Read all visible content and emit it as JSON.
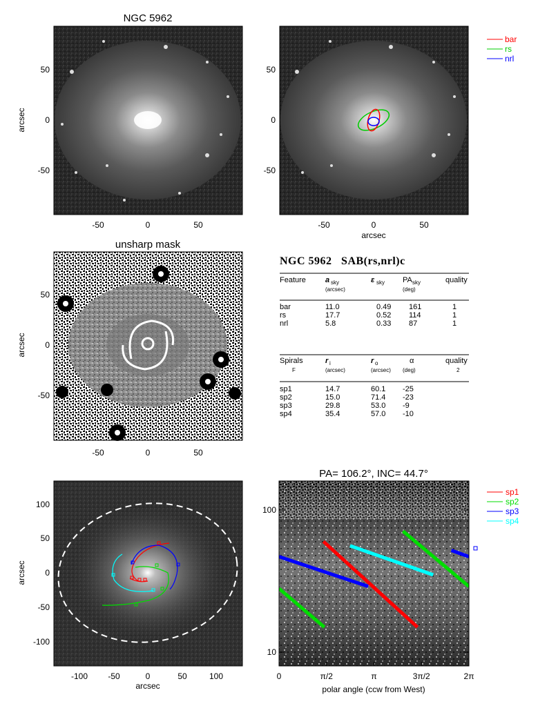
{
  "panels": {
    "image_title": "NGC 5962",
    "unsharp_title": "unsharp mask",
    "arcsec_label": "arcsec",
    "ticks_lin": [
      "-50",
      "0",
      "50"
    ],
    "ticks_big": [
      "-100",
      "-50",
      "0",
      "50",
      "100"
    ],
    "legend_top": [
      {
        "label": "bar",
        "color": "#ff0000"
      },
      {
        "label": "rs",
        "color": "#00cc00"
      },
      {
        "label": "nrl",
        "color": "#0000ff"
      }
    ]
  },
  "table": {
    "heading": "NGC 5962   SAB(rs,nrl)c",
    "feat_header": [
      "Feature",
      "a",
      "sky",
      "(arcsec)",
      "ε",
      "sky",
      "PA",
      "sky",
      "(deg)",
      "quality"
    ],
    "features": [
      [
        "bar",
        "11.0",
        "0.49",
        "161",
        "1"
      ],
      [
        "rs",
        "17.7",
        "0.52",
        "114",
        "1"
      ],
      [
        "nrl",
        "5.8",
        "0.33",
        "87",
        "1"
      ]
    ],
    "spiral_header": [
      "Spirals",
      "F",
      "r",
      "i",
      "(arcsec)",
      "r",
      "o",
      "(arcsec)",
      "α",
      "(deg)",
      "quality",
      "2"
    ],
    "spirals": [
      [
        "sp1",
        "14.7",
        "60.1",
        "-25"
      ],
      [
        "sp2",
        "15.0",
        "71.4",
        "-23"
      ],
      [
        "sp3",
        "29.8",
        "53.0",
        "-9"
      ],
      [
        "sp4",
        "35.4",
        "57.0",
        "-10"
      ]
    ]
  },
  "chart_data": {
    "type": "line",
    "title": "PA= 106.2°, INC=  44.7°",
    "xlabel": "polar angle (ccw from West)",
    "ylabel": "",
    "x_ticks": [
      "0",
      "π/2",
      "π",
      "3π/2",
      "2π"
    ],
    "xlim": [
      0,
      6.283
    ],
    "yscale": "log",
    "ylim": [
      8,
      160
    ],
    "y_ticks": [
      "10",
      "100"
    ],
    "legend": [
      {
        "label": "sp1",
        "color": "#ff0000"
      },
      {
        "label": "sp2",
        "color": "#00dd00"
      },
      {
        "label": "sp3",
        "color": "#0000ff"
      },
      {
        "label": "sp4",
        "color": "#00ffff"
      }
    ],
    "series": [
      {
        "name": "sp1",
        "color": "#ff0000",
        "segments": [
          [
            [
              1.47,
              60
            ],
            [
              4.58,
              15
            ]
          ]
        ]
      },
      {
        "name": "sp2",
        "color": "#00dd00",
        "segments": [
          [
            [
              0.0,
              28
            ],
            [
              1.5,
              15
            ]
          ],
          [
            [
              4.1,
              71
            ],
            [
              6.28,
              29
            ]
          ]
        ]
      },
      {
        "name": "sp3",
        "color": "#0000ff",
        "segments": [
          [
            [
              0.0,
              47
            ],
            [
              2.95,
              29
            ]
          ],
          [
            [
              5.7,
              52
            ],
            [
              6.28,
              47
            ]
          ]
        ]
      },
      {
        "name": "sp4",
        "color": "#00ffff",
        "segments": [
          [
            [
              2.35,
              56
            ],
            [
              5.1,
              35
            ]
          ]
        ]
      }
    ]
  }
}
